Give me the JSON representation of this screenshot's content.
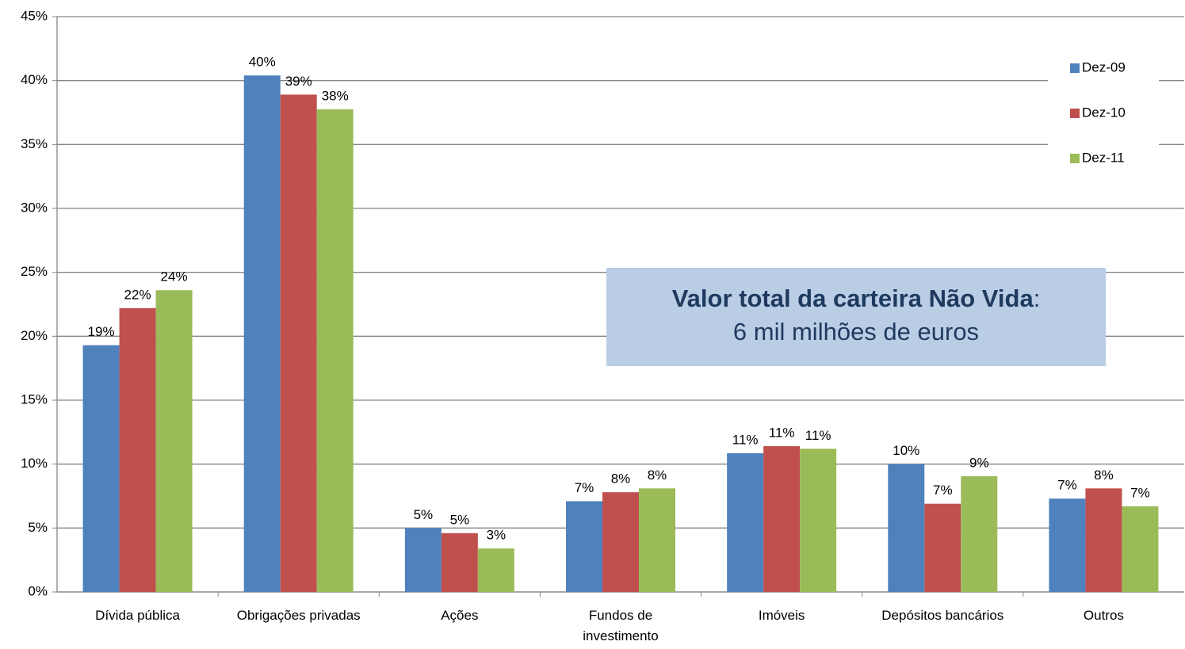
{
  "chart_data": {
    "type": "bar",
    "categories": [
      "Dívida pública",
      "Obrigações privadas",
      "Ações",
      "Fundos de\ninvestimento",
      "Imóveis",
      "Depósitos bancários",
      "Outros"
    ],
    "series": [
      {
        "name": "Dez-09",
        "color": "#4f81bd",
        "values": [
          19.3,
          40.4,
          5.0,
          7.1,
          10.85,
          10.0,
          7.3
        ],
        "value_labels": [
          "19%",
          "40%",
          "5%",
          "7%",
          "11%",
          "10%",
          "7%"
        ]
      },
      {
        "name": "Dez-10",
        "color": "#c0504d",
        "values": [
          22.2,
          38.9,
          4.6,
          7.8,
          11.4,
          6.9,
          8.1
        ],
        "value_labels": [
          "22%",
          "39%",
          "5%",
          "8%",
          "11%",
          "7%",
          "8%"
        ]
      },
      {
        "name": "Dez-11",
        "color": "#9bbb59",
        "values": [
          23.6,
          37.75,
          3.4,
          8.1,
          11.2,
          9.05,
          6.7
        ],
        "value_labels": [
          "24%",
          "38%",
          "3%",
          "8%",
          "11%",
          "9%",
          "7%"
        ]
      }
    ],
    "ylim": [
      0,
      45
    ],
    "yticks": [
      {
        "value": 0,
        "label": "0%"
      },
      {
        "value": 5,
        "label": "5%"
      },
      {
        "value": 10,
        "label": "10%"
      },
      {
        "value": 15,
        "label": "15%"
      },
      {
        "value": 20,
        "label": "20%"
      },
      {
        "value": 25,
        "label": "25%"
      },
      {
        "value": 30,
        "label": "30%"
      },
      {
        "value": 35,
        "label": "35%"
      },
      {
        "value": 40,
        "label": "40%"
      },
      {
        "value": 45,
        "label": "45%"
      }
    ],
    "grid": true,
    "legend": "right",
    "annotation": [
      "Valor total da carteira Não Vida",
      ":",
      "6 mil milhões de euros"
    ]
  }
}
